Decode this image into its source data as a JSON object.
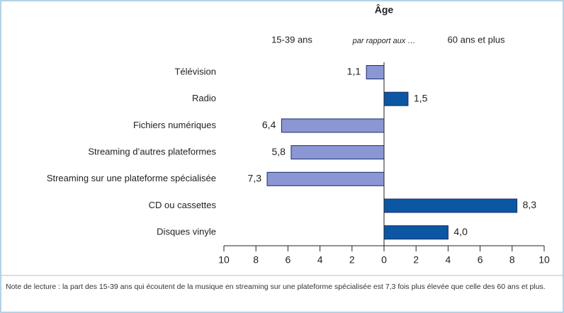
{
  "chart_data": {
    "type": "diverging-bar",
    "title": "Âge",
    "subtitle": "par rapport aux …",
    "categories": [
      "Télévision",
      "Radio",
      "Fichiers numériques",
      "Streaming d’autres plateformes",
      "Streaming sur une plateforme spécialisée",
      "CD ou cassettes",
      "Disques vinyle"
    ],
    "series": [
      {
        "name": "15-39 ans",
        "color": "#8b97d4",
        "values": [
          -1.1,
          null,
          -6.4,
          -5.8,
          -7.3,
          null,
          null
        ],
        "value_labels": [
          "1,1",
          null,
          "6,4",
          "5,8",
          "7,3",
          null,
          null
        ]
      },
      {
        "name": "60 ans et plus",
        "color": "#0b57a4",
        "values": [
          null,
          1.5,
          null,
          null,
          null,
          8.3,
          4.0
        ],
        "value_labels": [
          null,
          "1,5",
          null,
          null,
          null,
          "8,3",
          "4,0"
        ]
      }
    ],
    "xlim": [
      -10,
      10
    ],
    "xticks": [
      {
        "value": -10,
        "label": "10"
      },
      {
        "value": -8,
        "label": "8"
      },
      {
        "value": -6,
        "label": "6"
      },
      {
        "value": -4,
        "label": "4"
      },
      {
        "value": -2,
        "label": "2"
      },
      0,
      2,
      4,
      6,
      8,
      10
    ],
    "note": "Note de lecture : la part des 15-39 ans qui écoutent de la musique en streaming sur une plateforme spécialisée est 7,3 fois plus élevée que celle des 60 ans et plus."
  }
}
